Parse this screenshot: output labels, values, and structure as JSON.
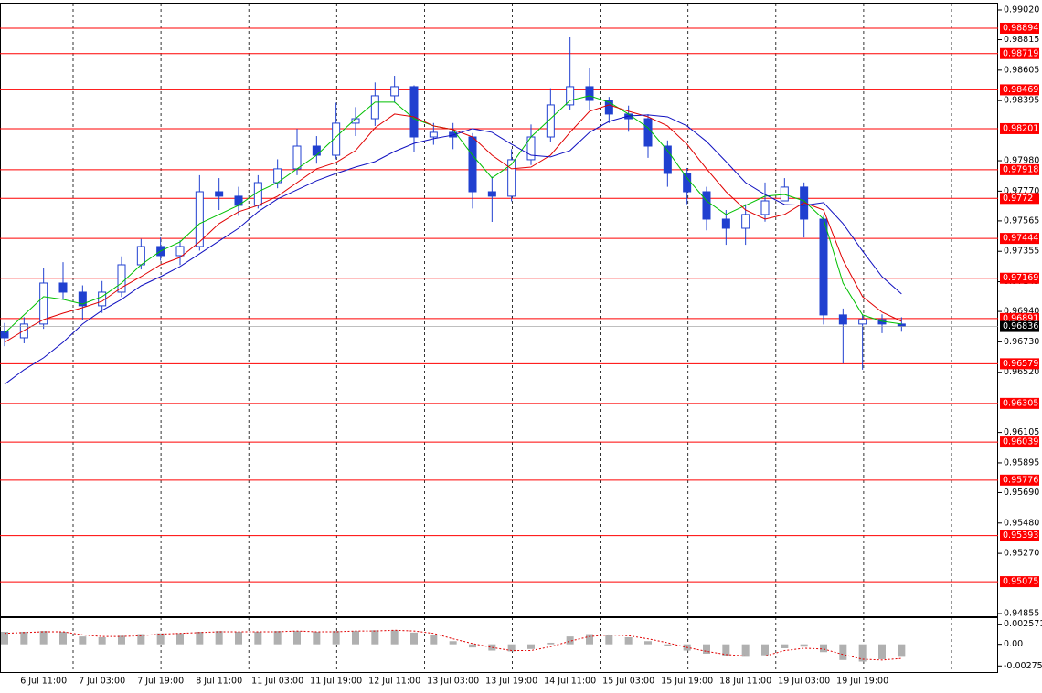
{
  "chart_data": {
    "type": "candlestick",
    "color": "#2040d0",
    "grid": true,
    "categories": [
      null,
      null,
      "6 Jul 11:00",
      null,
      null,
      "7 Jul 03:00",
      null,
      null,
      "7 Jul 19:00",
      null,
      null,
      "8 Jul 11:00",
      null,
      null,
      "11 Jul 03:00",
      null,
      null,
      "11 Jul 19:00",
      null,
      null,
      "12 Jul 11:00",
      null,
      null,
      "13 Jul 03:00",
      null,
      null,
      "13 Jul 19:00",
      null,
      null,
      "14 Jul 11:00",
      null,
      null,
      "15 Jul 03:00",
      null,
      null,
      "15 Jul 19:00",
      null,
      null,
      "18 Jul 11:00",
      null,
      null,
      "19 Jul 03:00",
      null,
      null,
      "19 Jul 19:00",
      null,
      null
    ],
    "open": [
      0.968,
      0.96758,
      0.96853,
      0.97136,
      0.97073,
      0.96979,
      0.97073,
      0.97262,
      0.97388,
      0.97325,
      0.97388,
      0.97766,
      0.97735,
      0.97672,
      0.97829,
      0.97924,
      0.98081,
      0.98018,
      0.98239,
      0.9827,
      0.98428,
      0.98491,
      0.98144,
      0.98176,
      0.98144,
      0.97766,
      0.97735,
      0.97987,
      0.98144,
      0.98365,
      0.98491,
      0.98396,
      0.98302,
      0.9827,
      0.98081,
      0.97892,
      0.97766,
      0.97577,
      0.97514,
      0.97609,
      0.97703,
      0.97798,
      0.97577,
      0.96916,
      0.96853,
      0.96884,
      0.96853
    ],
    "high": [
      0.9686,
      0.969,
      0.9724,
      0.9728,
      0.9712,
      0.9715,
      0.9732,
      0.9744,
      0.9745,
      0.9743,
      0.9788,
      0.9786,
      0.978,
      0.9788,
      0.9799,
      0.982,
      0.9815,
      0.9838,
      0.9835,
      0.9852,
      0.98566,
      0.985,
      0.9824,
      0.9824,
      0.9817,
      0.9787,
      0.9806,
      0.9823,
      0.9848,
      0.98837,
      0.9862,
      0.9842,
      0.9836,
      0.983,
      0.9812,
      0.9793,
      0.978,
      0.9764,
      0.9768,
      0.9783,
      0.9786,
      0.9783,
      0.976,
      0.9696,
      0.9692,
      0.9692,
      0.969
    ],
    "low": [
      0.967,
      0.9672,
      0.9682,
      0.9702,
      0.9688,
      0.9693,
      0.9704,
      0.9723,
      0.9729,
      0.9726,
      0.9736,
      0.9764,
      0.976,
      0.9765,
      0.9779,
      0.9788,
      0.9796,
      0.9799,
      0.9815,
      0.9822,
      0.9838,
      0.9804,
      0.9809,
      0.9806,
      0.9765,
      0.97558,
      0.977,
      0.9795,
      0.9811,
      0.9833,
      0.9833,
      0.9824,
      0.9818,
      0.98,
      0.978,
      0.9768,
      0.975,
      0.974,
      0.974,
      0.9756,
      0.977,
      0.9745,
      0.9685,
      0.9658,
      0.96538,
      0.9679,
      0.968
    ],
    "close": [
      0.96758,
      0.96853,
      0.97136,
      0.97073,
      0.96979,
      0.97073,
      0.97262,
      0.97388,
      0.97325,
      0.97388,
      0.97766,
      0.97735,
      0.97672,
      0.97829,
      0.97924,
      0.98081,
      0.98018,
      0.98239,
      0.9827,
      0.98428,
      0.98491,
      0.98144,
      0.98176,
      0.98144,
      0.97766,
      0.97735,
      0.97987,
      0.98144,
      0.98365,
      0.98491,
      0.98396,
      0.98302,
      0.9827,
      0.98081,
      0.97892,
      0.97766,
      0.97577,
      0.97514,
      0.97609,
      0.97703,
      0.97798,
      0.97577,
      0.96916,
      0.96853,
      0.96884,
      0.96853,
      0.9684
    ],
    "moving_averages": [
      {
        "color": "#00c000",
        "values": [
          0.9679,
          0.96916,
          0.97042,
          0.97023,
          0.96991,
          0.97042,
          0.97136,
          0.97262,
          0.97357,
          0.9742,
          0.97546,
          0.97609,
          0.97672,
          0.97766,
          0.97829,
          0.97924,
          0.98018,
          0.98144,
          0.9827,
          0.98384,
          0.98384,
          0.9827,
          0.9822,
          0.98195,
          0.98018,
          0.97861,
          0.97955,
          0.98144,
          0.9827,
          0.98396,
          0.98428,
          0.98384,
          0.98302,
          0.98207,
          0.9805,
          0.97861,
          0.97703,
          0.97609,
          0.97672,
          0.97735,
          0.97747,
          0.97703,
          0.97577,
          0.97136,
          0.96916,
          0.96872,
          0.96853
        ]
      },
      {
        "color": "#e00000",
        "values": [
          0.96727,
          0.96809,
          0.96884,
          0.96928,
          0.96966,
          0.9701,
          0.97105,
          0.9718,
          0.97262,
          0.97313,
          0.9742,
          0.97546,
          0.97628,
          0.97672,
          0.97735,
          0.97829,
          0.97924,
          0.97968,
          0.9805,
          0.98207,
          0.98302,
          0.98283,
          0.9822,
          0.98195,
          0.98144,
          0.98018,
          0.97924,
          0.97936,
          0.98018,
          0.98176,
          0.98321,
          0.98365,
          0.98321,
          0.98283,
          0.9822,
          0.98094,
          0.97924,
          0.97766,
          0.9764,
          0.97577,
          0.97609,
          0.97691,
          0.9764,
          0.97294,
          0.97042,
          0.96935,
          0.96872
        ]
      },
      {
        "color": "#1010c0",
        "values": [
          0.96437,
          0.96538,
          0.9662,
          0.96727,
          0.96853,
          0.96947,
          0.97023,
          0.97117,
          0.9718,
          0.9725,
          0.97338,
          0.97426,
          0.97514,
          0.97628,
          0.97716,
          0.97779,
          0.97842,
          0.97892,
          0.97936,
          0.97974,
          0.98044,
          0.981,
          0.98132,
          0.98157,
          0.98201,
          0.98176,
          0.98094,
          0.98018,
          0.98006,
          0.9805,
          0.98176,
          0.98251,
          0.98289,
          0.98296,
          0.98283,
          0.9822,
          0.98113,
          0.97974,
          0.97829,
          0.97747,
          0.97678,
          0.97672,
          0.97691,
          0.97546,
          0.97357,
          0.9718,
          0.97061
        ]
      }
    ],
    "ylim": [
      0.94836,
      0.99064
    ],
    "yticks": [
      {
        "value": 0.9902,
        "label": "0.99020"
      },
      0.98815,
      0.98605,
      0.98395,
      {
        "value": 0.9798,
        "label": "0.97980"
      },
      {
        "value": 0.9777,
        "label": "0.97770"
      },
      0.97565,
      0.97355,
      0.97145,
      {
        "value": 0.9694,
        "label": "0.96940"
      },
      {
        "value": 0.9673,
        "label": "0.96730"
      },
      {
        "value": 0.9652,
        "label": "0.96520"
      },
      0.96105,
      0.95895,
      {
        "value": 0.9569,
        "label": "0.95690"
      },
      {
        "value": 0.9548,
        "label": "0.95480"
      },
      {
        "value": 0.9527,
        "label": "0.95270"
      },
      0.94855
    ],
    "levels": {
      "color": "#ff0000",
      "values": [
        0.98894,
        0.98719,
        0.98469,
        0.98201,
        0.97918,
        0.9772,
        0.97444,
        0.97169,
        0.96891,
        0.96579,
        0.96305,
        0.96039,
        0.95776,
        0.95393,
        0.95075
      ]
    },
    "current_price": {
      "color": "#000000",
      "value": 0.96836
    },
    "indicator": {
      "type": "histogram",
      "color": "#b0b0b0",
      "ylim": [
        -0.00354,
        0.00335
      ],
      "yticks": [
        0.002571,
        {
          "value": 0,
          "label": "0.00"
        },
        -0.002758
      ],
      "values": [
        0.0016,
        0.0016,
        0.0017,
        0.0016,
        0.001,
        0.0009,
        0.0011,
        0.0013,
        0.0014,
        0.0014,
        0.0016,
        0.0017,
        0.0016,
        0.0016,
        0.0017,
        0.0017,
        0.0016,
        0.0017,
        0.0017,
        0.0018,
        0.0018,
        0.0015,
        0.0012,
        0.0004,
        -0.0004,
        -0.0008,
        -0.0009,
        -0.0006,
        0.0002,
        0.001,
        0.0013,
        0.0012,
        0.0009,
        0.0004,
        -0.0002,
        -0.0008,
        -0.0012,
        -0.0015,
        -0.0016,
        -0.0014,
        -0.0005,
        -0.0003,
        -0.001,
        -0.002,
        -0.0022,
        -0.0019,
        -0.0016
      ],
      "signal": {
        "color": "#e00000",
        "values": [
          0.0014,
          0.0015,
          0.0016,
          0.0016,
          0.0012,
          0.001,
          0.001,
          0.0011,
          0.0013,
          0.0014,
          0.0015,
          0.0016,
          0.0016,
          0.0016,
          0.0016,
          0.0017,
          0.0016,
          0.0016,
          0.0017,
          0.0017,
          0.0018,
          0.0017,
          0.0014,
          0.0007,
          0.0001,
          -0.0004,
          -0.0008,
          -0.0008,
          -0.0003,
          0.0004,
          0.001,
          0.0012,
          0.0011,
          0.0007,
          0.0002,
          -0.0004,
          -0.0009,
          -0.0013,
          -0.0015,
          -0.0015,
          -0.0008,
          -0.0005,
          -0.0006,
          -0.0013,
          -0.0019,
          -0.002,
          -0.0018
        ]
      }
    }
  }
}
